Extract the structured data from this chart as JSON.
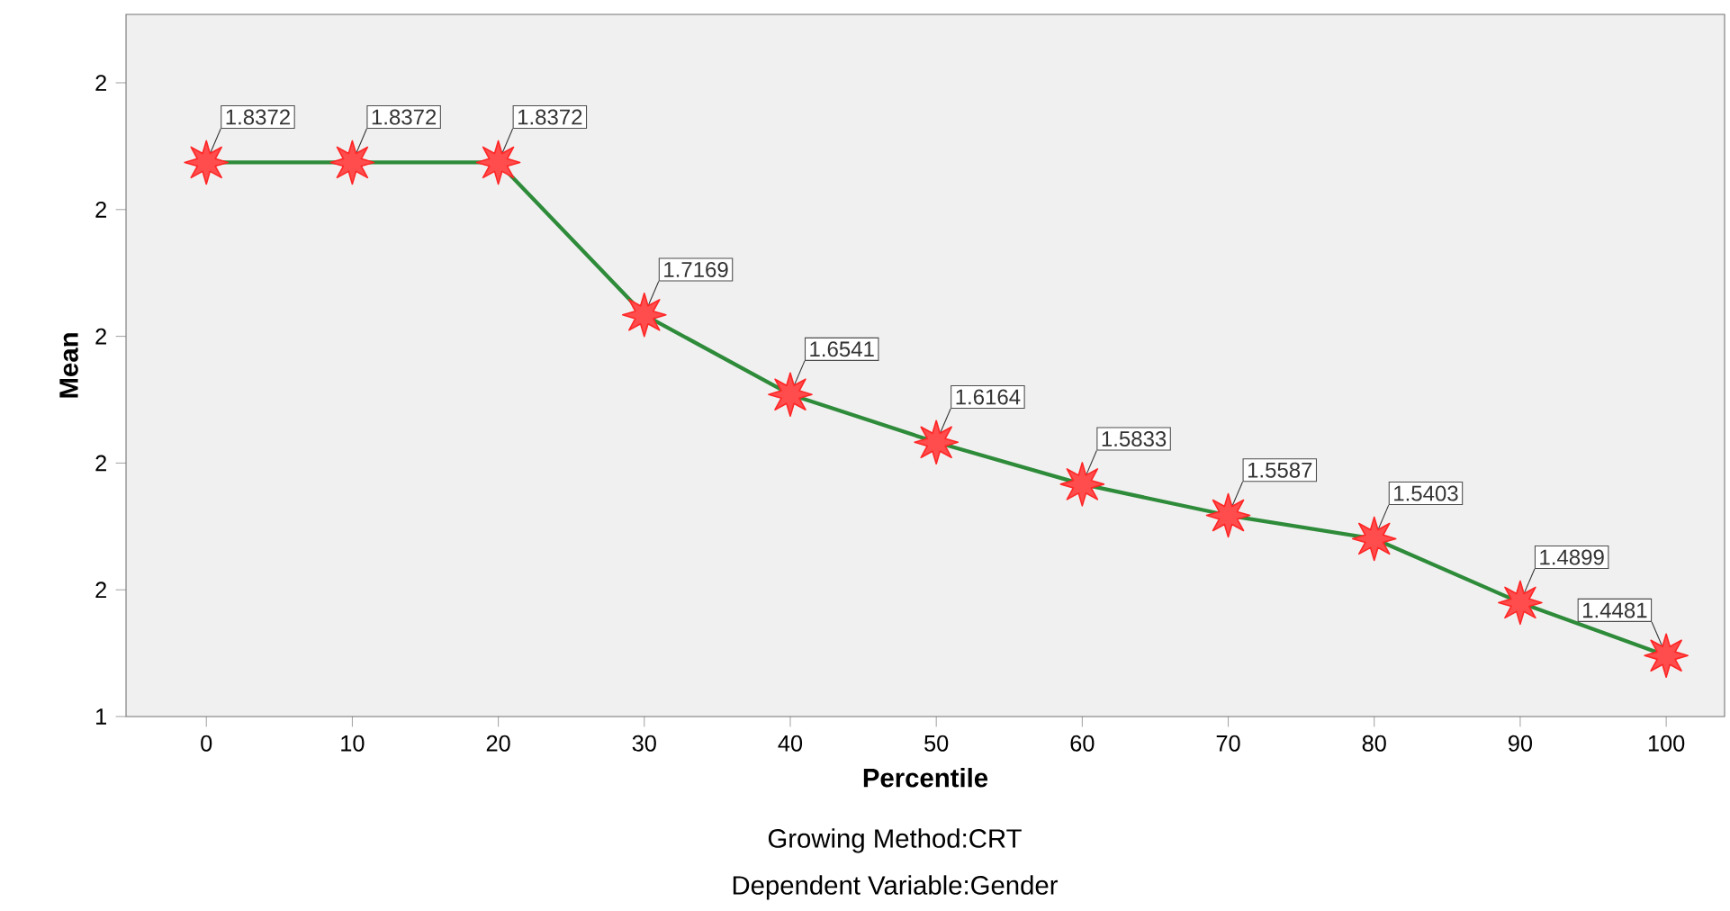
{
  "chart_data": {
    "type": "line",
    "xlabel": "Percentile",
    "ylabel": "Mean",
    "x": [
      0,
      10,
      20,
      30,
      40,
      50,
      60,
      70,
      80,
      90,
      100
    ],
    "series": [
      {
        "color": "#2e8b3a",
        "values": [
          1.8372,
          1.8372,
          1.8372,
          1.7169,
          1.6541,
          1.6164,
          1.5833,
          1.5587,
          1.5403,
          1.4899,
          1.4481
        ]
      }
    ],
    "xlim": [
      -5.5,
      104
    ],
    "xticks": [
      0,
      10,
      20,
      30,
      40,
      50,
      60,
      70,
      80,
      90,
      100
    ],
    "ylim": [
      1.4,
      1.954
    ],
    "yticks": [
      {
        "value": 1.4,
        "label": "1"
      },
      {
        "value": 1.5,
        "label": "2"
      },
      {
        "value": 1.6,
        "label": "2"
      },
      {
        "value": 1.7,
        "label": "2"
      },
      {
        "value": 1.8,
        "label": "2"
      },
      {
        "value": 1.9,
        "label": "2"
      }
    ],
    "marker": "star",
    "data_labels": true,
    "grid": false,
    "annotations": [
      "Growing Method:CRT",
      "Dependent Variable:Gender"
    ]
  }
}
